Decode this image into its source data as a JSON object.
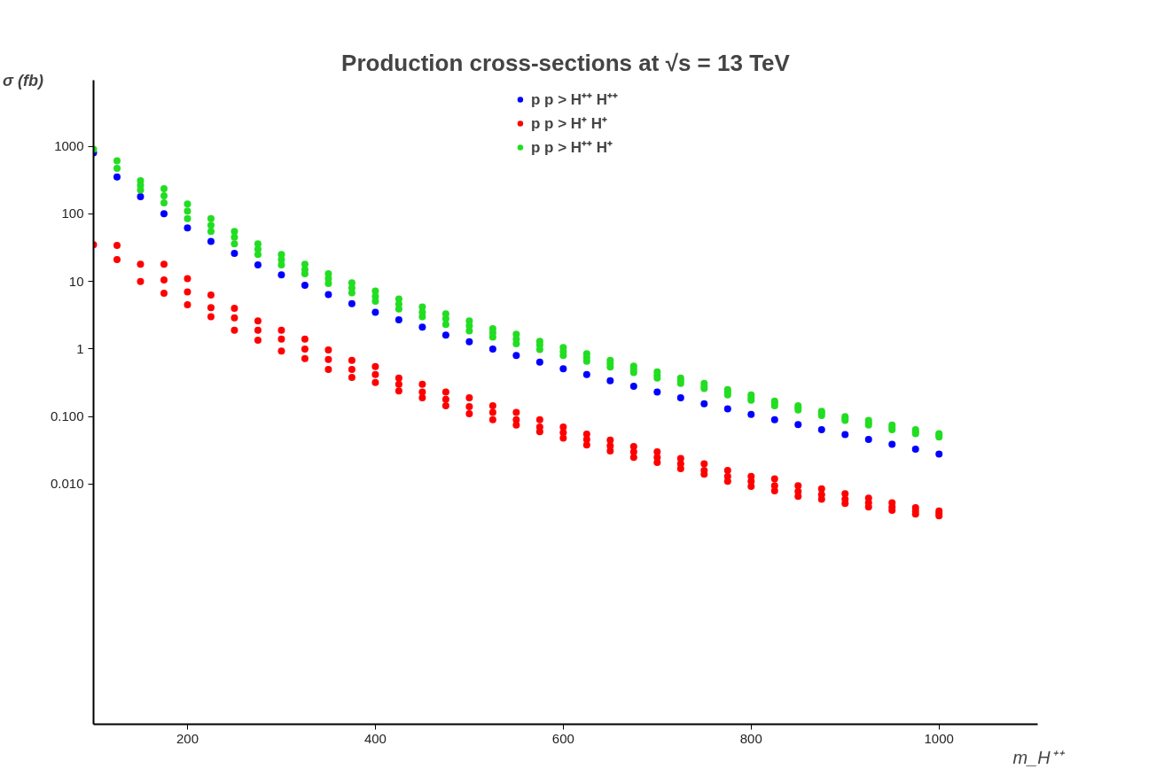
{
  "chart_data": {
    "type": "scatter",
    "title": "Production cross‑sections at √s = 13 TeV",
    "xlabel": "m_H⁺⁺",
    "ylabel": "σ (fb)",
    "log": "y",
    "xlim": [
      100,
      1105
    ],
    "ylim": [
      2.8e-06,
      9500
    ],
    "xticks": [
      200,
      400,
      600,
      800,
      1000
    ],
    "yticks": [
      {
        "value": 0.01,
        "label": "0.010"
      },
      {
        "value": 0.1,
        "label": "0.100"
      },
      1,
      10,
      100,
      1000
    ],
    "grid": false,
    "legend": "top",
    "marker": "circle",
    "series": [
      {
        "name": "p p > H⁺⁺ H⁺⁺",
        "color": "#0000ff",
        "x": [
          100,
          125,
          150,
          175,
          200,
          225,
          250,
          275,
          300,
          325,
          350,
          375,
          400,
          425,
          450,
          475,
          500,
          525,
          550,
          575,
          600,
          625,
          650,
          675,
          700,
          725,
          750,
          775,
          800,
          825,
          850,
          875,
          900,
          925,
          950,
          975,
          1000
        ],
        "values": [
          800,
          350,
          180,
          100,
          62,
          39,
          26,
          17.5,
          12.5,
          8.8,
          6.4,
          4.7,
          3.5,
          2.7,
          2.1,
          1.6,
          1.28,
          1.0,
          0.8,
          0.64,
          0.51,
          0.42,
          0.34,
          0.28,
          0.23,
          0.19,
          0.155,
          0.13,
          0.108,
          0.09,
          0.076,
          0.064,
          0.054,
          0.046,
          0.039,
          0.033,
          0.028
        ]
      },
      {
        "name": "p p > H⁺ H⁺",
        "color": "#ff0000",
        "x": [
          100,
          125,
          125,
          150,
          150,
          175,
          175,
          175,
          200,
          200,
          200,
          225,
          225,
          225,
          250,
          250,
          250,
          275,
          275,
          275,
          300,
          300,
          300,
          325,
          325,
          325,
          350,
          350,
          350,
          375,
          375,
          375,
          400,
          400,
          400,
          425,
          425,
          425,
          450,
          450,
          450,
          475,
          475,
          475,
          500,
          500,
          500,
          525,
          525,
          525,
          550,
          550,
          550,
          575,
          575,
          575,
          600,
          600,
          600,
          625,
          625,
          625,
          650,
          650,
          650,
          675,
          675,
          675,
          700,
          700,
          700,
          725,
          725,
          725,
          750,
          750,
          750,
          775,
          775,
          775,
          800,
          800,
          800,
          825,
          825,
          825,
          850,
          850,
          850,
          875,
          875,
          875,
          900,
          900,
          900,
          925,
          925,
          925,
          950,
          950,
          950,
          975,
          975,
          975,
          1000,
          1000,
          1000
        ],
        "values": [
          35,
          34,
          21,
          18,
          10,
          18,
          10.5,
          6.7,
          11,
          7,
          4.5,
          6.3,
          4.1,
          3.0,
          4.0,
          2.9,
          1.9,
          2.6,
          1.9,
          1.35,
          1.9,
          1.4,
          0.93,
          1.4,
          1.0,
          0.72,
          0.97,
          0.7,
          0.5,
          0.68,
          0.5,
          0.38,
          0.55,
          0.42,
          0.32,
          0.37,
          0.3,
          0.24,
          0.3,
          0.23,
          0.19,
          0.23,
          0.18,
          0.145,
          0.19,
          0.14,
          0.11,
          0.145,
          0.115,
          0.09,
          0.115,
          0.09,
          0.075,
          0.09,
          0.07,
          0.06,
          0.07,
          0.058,
          0.048,
          0.055,
          0.046,
          0.038,
          0.045,
          0.037,
          0.031,
          0.036,
          0.03,
          0.025,
          0.03,
          0.025,
          0.021,
          0.024,
          0.02,
          0.017,
          0.02,
          0.016,
          0.014,
          0.016,
          0.013,
          0.011,
          0.013,
          0.011,
          0.0093,
          0.012,
          0.0095,
          0.008,
          0.0095,
          0.0078,
          0.0066,
          0.0085,
          0.007,
          0.006,
          0.0072,
          0.006,
          0.0052,
          0.0062,
          0.0053,
          0.0046,
          0.0053,
          0.0046,
          0.0041,
          0.0045,
          0.004,
          0.0036,
          0.004,
          0.0037,
          0.0034
        ]
      },
      {
        "name": "p p > H⁺⁺ H⁺",
        "color": "#22dd22",
        "x": [
          100,
          125,
          125,
          150,
          150,
          150,
          175,
          175,
          175,
          200,
          200,
          200,
          225,
          225,
          225,
          250,
          250,
          250,
          275,
          275,
          275,
          300,
          300,
          300,
          325,
          325,
          325,
          350,
          350,
          350,
          375,
          375,
          375,
          400,
          400,
          400,
          425,
          425,
          425,
          450,
          450,
          450,
          475,
          475,
          475,
          500,
          500,
          500,
          525,
          525,
          525,
          550,
          550,
          550,
          575,
          575,
          575,
          600,
          600,
          600,
          625,
          625,
          625,
          650,
          650,
          650,
          675,
          675,
          675,
          700,
          700,
          700,
          725,
          725,
          725,
          750,
          750,
          750,
          775,
          775,
          775,
          800,
          800,
          800,
          825,
          825,
          825,
          850,
          850,
          850,
          875,
          875,
          875,
          900,
          900,
          900,
          925,
          925,
          925,
          950,
          950,
          950,
          975,
          975,
          975,
          1000,
          1000,
          1000
        ],
        "values": [
          900,
          610,
          470,
          310,
          265,
          225,
          235,
          185,
          145,
          140,
          110,
          85,
          85,
          68,
          55,
          55,
          45,
          36,
          36,
          30,
          25,
          25,
          21,
          17.5,
          18,
          15,
          13,
          13,
          11,
          9.3,
          9.5,
          8.0,
          6.8,
          7.2,
          6.0,
          5.1,
          5.5,
          4.6,
          3.9,
          4.2,
          3.5,
          3.0,
          3.3,
          2.8,
          2.3,
          2.6,
          2.2,
          1.85,
          2.0,
          1.75,
          1.5,
          1.65,
          1.4,
          1.2,
          1.3,
          1.15,
          0.98,
          1.05,
          0.92,
          0.8,
          0.85,
          0.75,
          0.66,
          0.68,
          0.61,
          0.54,
          0.56,
          0.5,
          0.45,
          0.46,
          0.41,
          0.37,
          0.37,
          0.34,
          0.31,
          0.31,
          0.28,
          0.26,
          0.25,
          0.23,
          0.21,
          0.21,
          0.19,
          0.175,
          0.17,
          0.16,
          0.145,
          0.145,
          0.135,
          0.125,
          0.12,
          0.112,
          0.104,
          0.1,
          0.094,
          0.088,
          0.088,
          0.081,
          0.075,
          0.075,
          0.069,
          0.064,
          0.064,
          0.06,
          0.056,
          0.056,
          0.053,
          0.05
        ]
      }
    ]
  }
}
